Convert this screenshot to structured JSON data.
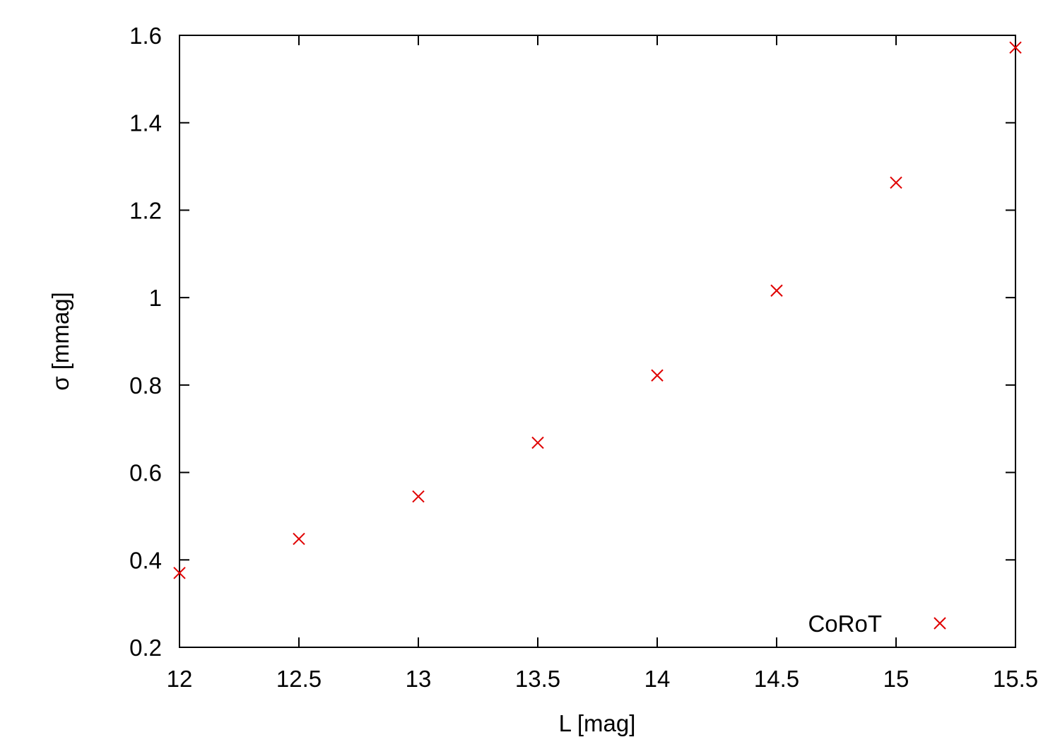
{
  "chart_data": {
    "type": "scatter",
    "title": "",
    "xlabel": "L [mag]",
    "ylabel": "σ [mmag]",
    "xlim": [
      12,
      15.5
    ],
    "ylim": [
      0.2,
      1.6
    ],
    "xticks": [
      "12",
      "12.5",
      "13",
      "13.5",
      "14",
      "14.5",
      "15",
      "15.5"
    ],
    "yticks": [
      "0.2",
      "0.4",
      "0.6",
      "0.8",
      "1",
      "1.2",
      "1.4",
      "1.6"
    ],
    "grid": false,
    "legend": {
      "placement": "bottom-right",
      "entries": [
        "CoRoT"
      ]
    },
    "marker_color": "#e00000",
    "marker": "x",
    "series": [
      {
        "name": "CoRoT",
        "x": [
          12,
          12.5,
          13,
          13.5,
          14,
          14.5,
          15,
          15.5
        ],
        "y": [
          0.37,
          0.448,
          0.545,
          0.668,
          0.822,
          1.016,
          1.263,
          1.572
        ]
      }
    ]
  }
}
